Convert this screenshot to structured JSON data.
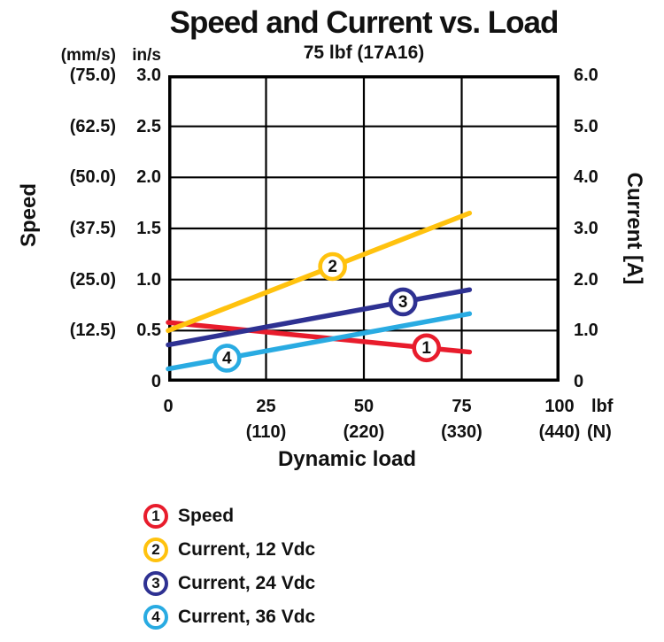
{
  "chart_data": {
    "type": "line",
    "title": "Speed and Current vs. Load",
    "subtitle": "75 lbf (17A16)",
    "xlabel": "Dynamic load",
    "grid": true,
    "legend_position": "bottom-left",
    "xlim": [
      0,
      100
    ],
    "left_ylim": [
      0,
      3.0
    ],
    "right_ylim": [
      0,
      6.0
    ],
    "x_axis": {
      "unit_primary": "lbf",
      "unit_secondary": "(N)",
      "ticks": [
        {
          "lbf": "0",
          "n": "",
          "value": 0
        },
        {
          "lbf": "25",
          "n": "(110)",
          "value": 25
        },
        {
          "lbf": "50",
          "n": "(220)",
          "value": 50
        },
        {
          "lbf": "75",
          "n": "(330)",
          "value": 75
        },
        {
          "lbf": "100",
          "n": "(440)",
          "value": 100
        }
      ]
    },
    "left_axis": {
      "title": "Speed",
      "unit_primary": "in/s",
      "unit_secondary": "(mm/s)",
      "ticks": [
        {
          "in_s": "3.0",
          "mm_s": "(75.0)",
          "value": 3.0
        },
        {
          "in_s": "2.5",
          "mm_s": "(62.5)",
          "value": 2.5
        },
        {
          "in_s": "2.0",
          "mm_s": "(50.0)",
          "value": 2.0
        },
        {
          "in_s": "1.5",
          "mm_s": "(37.5)",
          "value": 1.5
        },
        {
          "in_s": "1.0",
          "mm_s": "(25.0)",
          "value": 1.0
        },
        {
          "in_s": "0.5",
          "mm_s": "(12.5)",
          "value": 0.5
        },
        {
          "in_s": "0",
          "mm_s": "",
          "value": 0
        }
      ]
    },
    "right_axis": {
      "title": "Current [A]",
      "ticks": [
        {
          "label": "6.0",
          "value": 6.0
        },
        {
          "label": "5.0",
          "value": 5.0
        },
        {
          "label": "4.0",
          "value": 4.0
        },
        {
          "label": "3.0",
          "value": 3.0
        },
        {
          "label": "2.0",
          "value": 2.0
        },
        {
          "label": "1.0",
          "value": 1.0
        },
        {
          "label": "0",
          "value": 0
        }
      ]
    },
    "series": [
      {
        "number": "1",
        "name": "Speed",
        "axis": "left",
        "color": "#e81c2c",
        "points": [
          [
            0,
            0.58
          ],
          [
            77,
            0.29
          ]
        ],
        "marker_x": 66
      },
      {
        "number": "2",
        "name": "Current, 12 Vdc",
        "axis": "right",
        "color": "#ffc20e",
        "points": [
          [
            0,
            1.0
          ],
          [
            77,
            3.3
          ]
        ],
        "marker_x": 42
      },
      {
        "number": "3",
        "name": "Current, 24 Vdc",
        "axis": "right",
        "color": "#2e3192",
        "points": [
          [
            0,
            0.72
          ],
          [
            77,
            1.8
          ]
        ],
        "marker_x": 60
      },
      {
        "number": "4",
        "name": "Current, 36 Vdc",
        "axis": "right",
        "color": "#29abe2",
        "points": [
          [
            0,
            0.25
          ],
          [
            77,
            1.33
          ]
        ],
        "marker_x": 15
      }
    ]
  }
}
